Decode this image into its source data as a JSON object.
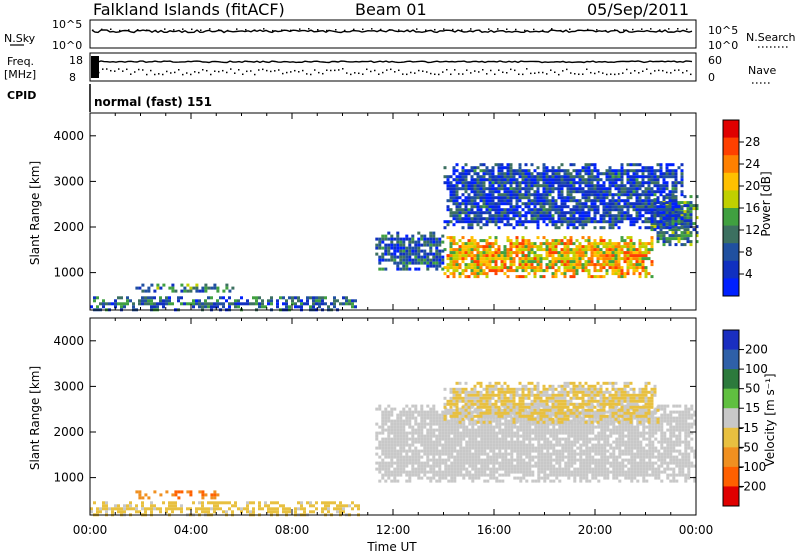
{
  "header": {
    "site": "Falkland Islands (fitACF)",
    "beam": "Beam 01",
    "date": "05/Sep/2011"
  },
  "noise_panel": {
    "left_label": "N.Sky",
    "left_ticks": [
      "10^5",
      "10^0"
    ],
    "right_ticks": [
      "10^5",
      "10^0"
    ],
    "right_label": "N.Search"
  },
  "freq_panel": {
    "left_label_line1": "Freq.",
    "left_label_line2": "[MHz]",
    "left_ticks": [
      "18",
      "8"
    ],
    "right_ticks": [
      "60",
      "0"
    ],
    "right_label": "Nave"
  },
  "cpid": {
    "label": "CPID",
    "mode": "normal (fast) 151"
  },
  "axes": {
    "ylabel": "Slant Range [km]",
    "xlabel": "Time UT",
    "y_ticks": [
      "4000",
      "3000",
      "2000",
      "1000"
    ],
    "x_ticks": [
      "00:00",
      "04:00",
      "08:00",
      "12:00",
      "16:00",
      "20:00",
      "00:00"
    ],
    "x_range_hours": [
      0,
      24
    ],
    "y_range_km": [
      180,
      4500
    ]
  },
  "colorbars": {
    "power": {
      "label": "Power [dB]",
      "ticks": [
        "28",
        "24",
        "20",
        "16",
        "12",
        "8",
        "4"
      ],
      "colors": [
        "#e00000",
        "#ff4000",
        "#ff8000",
        "#ffc000",
        "#c0d000",
        "#40a040",
        "#3c7060",
        "#2050a0",
        "#1030c0",
        "#0020ff"
      ]
    },
    "velocity": {
      "label": "Velocity [m s⁻¹]",
      "ticks": [
        "200",
        "100",
        "50",
        "15",
        "-15",
        "-50",
        "-100",
        "-200"
      ],
      "colors": [
        "#1a2ec0",
        "#2f60a8",
        "#2c7a3c",
        "#60c040",
        "#c8c8c8",
        "#e8c040",
        "#f09020",
        "#ff6000",
        "#e00000"
      ]
    }
  },
  "chart_data": [
    {
      "type": "line",
      "title": "N.Sky / N.Search",
      "x_range": [
        0,
        24
      ],
      "series": [
        {
          "name": "N.Sky",
          "level": "10^5"
        },
        {
          "name": "N.Search",
          "level": "10^5"
        }
      ]
    },
    {
      "type": "scatter",
      "title": "Freq. [MHz] / Nave",
      "x_range": [
        0,
        24
      ],
      "series": [
        {
          "name": "Freq. [MHz]",
          "value": 18
        },
        {
          "name": "Nave",
          "value": 8
        }
      ]
    },
    {
      "type": "heatmap",
      "title": "Power [dB]",
      "xlabel": "Time UT",
      "ylabel": "Slant Range [km]",
      "x_range_hours": [
        0,
        24
      ],
      "y_range_km": [
        180,
        4500
      ],
      "color_range": [
        0,
        30
      ],
      "regions": [
        {
          "t0": 14.0,
          "t1": 22.2,
          "r0": 900,
          "r1": 1800,
          "value": 20
        },
        {
          "t0": 22.2,
          "t1": 24.0,
          "r0": 1600,
          "r1": 2700,
          "value": 10
        },
        {
          "t0": 11.3,
          "t1": 14.0,
          "r0": 1100,
          "r1": 1900,
          "value": 6
        },
        {
          "t0": 14.0,
          "t1": 23.5,
          "r0": 2000,
          "r1": 3400,
          "value": 5
        },
        {
          "t0": 1.8,
          "t1": 5.7,
          "r0": 580,
          "r1": 760,
          "value": 10
        },
        {
          "t0": 0.0,
          "t1": 10.6,
          "r0": 180,
          "r1": 480,
          "value": 8
        }
      ]
    },
    {
      "type": "heatmap",
      "title": "Velocity [m s-1]",
      "xlabel": "Time UT",
      "ylabel": "Slant Range [km]",
      "x_range_hours": [
        0,
        24
      ],
      "y_range_km": [
        180,
        4500
      ],
      "color_range": [
        -200,
        200
      ],
      "regions": [
        {
          "t0": 11.3,
          "t1": 24.0,
          "r0": 900,
          "r1": 2600,
          "value": 0
        },
        {
          "t0": 14.0,
          "t1": 22.5,
          "r0": 2200,
          "r1": 3100,
          "value": -30
        },
        {
          "t0": 1.8,
          "t1": 5.2,
          "r0": 580,
          "r1": 720,
          "value": -120
        },
        {
          "t0": 0.0,
          "t1": 10.6,
          "r0": 180,
          "r1": 480,
          "value": -40
        }
      ]
    }
  ]
}
